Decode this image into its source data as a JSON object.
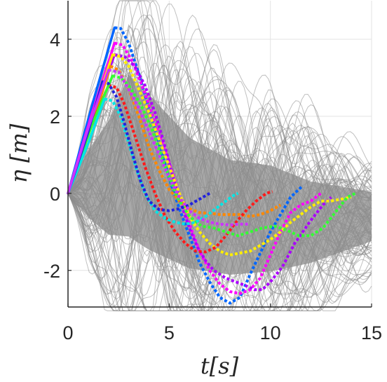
{
  "chart_data": {
    "type": "line",
    "xlabel": "t[s]",
    "ylabel": "η [m]",
    "xlim": [
      0,
      15
    ],
    "ylim": [
      -2.95,
      5.0
    ],
    "xticks": [
      0,
      5,
      10,
      15
    ],
    "yticks": [
      -2,
      0,
      2,
      4
    ],
    "xtick_labels": [
      "0",
      "5",
      "10",
      "15"
    ],
    "ytick_labels": [
      "-2",
      "0",
      "2",
      "4"
    ],
    "grid": true,
    "background": {
      "color": "#8c8c8c",
      "description_free": true,
      "trace_count": 110,
      "envelope_upper": [
        [
          0,
          0
        ],
        [
          1,
          1.6
        ],
        [
          2,
          2.7
        ],
        [
          3,
          4.25
        ],
        [
          4,
          3.7
        ],
        [
          6,
          2.4
        ],
        [
          8,
          1.7
        ],
        [
          10,
          1.5
        ],
        [
          12,
          0.9
        ],
        [
          15,
          0.4
        ]
      ],
      "envelope_lower": [
        [
          0,
          0
        ],
        [
          1,
          -1.1
        ],
        [
          2,
          -1.9
        ],
        [
          3,
          -2.3
        ],
        [
          4,
          -2.6
        ],
        [
          6,
          -2.9
        ],
        [
          8,
          -2.95
        ],
        [
          10,
          -2.8
        ],
        [
          12,
          -2.4
        ],
        [
          15,
          -1.6
        ]
      ]
    },
    "series": [
      {
        "color": "#0066ff",
        "values": [
          [
            0,
            0
          ],
          [
            1.2,
            2.3
          ],
          [
            2.3,
            4.3
          ],
          [
            2.6,
            4.28
          ],
          [
            3.0,
            3.9
          ],
          [
            3.5,
            3.1
          ],
          [
            4.0,
            2.2
          ],
          [
            4.5,
            1.3
          ],
          [
            5.0,
            0.4
          ],
          [
            5.5,
            -0.4
          ],
          [
            6.0,
            -1.1
          ],
          [
            6.5,
            -1.8
          ],
          [
            7.0,
            -2.3
          ],
          [
            7.5,
            -2.7
          ],
          [
            8.0,
            -2.85
          ],
          [
            8.5,
            -2.7
          ],
          [
            9.0,
            -2.1
          ],
          [
            10.0,
            -1.0
          ],
          [
            11.0,
            -0.1
          ],
          [
            11.6,
            0.2
          ]
        ]
      },
      {
        "color": "#ff00ff",
        "values": [
          [
            0,
            0
          ],
          [
            1.2,
            2.1
          ],
          [
            2.3,
            3.9
          ],
          [
            2.7,
            3.85
          ],
          [
            3.2,
            3.4
          ],
          [
            3.8,
            2.6
          ],
          [
            4.4,
            1.7
          ],
          [
            5.0,
            0.8
          ],
          [
            5.5,
            0.0
          ],
          [
            6.0,
            -0.8
          ],
          [
            6.5,
            -1.5
          ],
          [
            7.0,
            -2.0
          ],
          [
            7.5,
            -2.35
          ],
          [
            8.0,
            -2.55
          ],
          [
            8.5,
            -2.6
          ],
          [
            9.0,
            -2.5
          ],
          [
            9.5,
            -2.2
          ],
          [
            10.0,
            -1.6
          ],
          [
            10.5,
            -1.0
          ],
          [
            11.0,
            -0.5
          ],
          [
            11.5,
            -0.3
          ],
          [
            12.0,
            -0.2
          ],
          [
            12.5,
            0.0
          ]
        ]
      },
      {
        "color": "#aa00ff",
        "values": [
          [
            0,
            0
          ],
          [
            1.2,
            2.0
          ],
          [
            2.3,
            3.6
          ],
          [
            2.8,
            3.55
          ],
          [
            3.3,
            3.3
          ],
          [
            3.8,
            2.8
          ],
          [
            4.3,
            2.1
          ],
          [
            4.8,
            1.2
          ],
          [
            5.2,
            0.4
          ],
          [
            5.6,
            -0.3
          ],
          [
            6.0,
            -0.9
          ],
          [
            6.4,
            -1.4
          ],
          [
            6.8,
            -1.75
          ],
          [
            7.2,
            -2.0
          ],
          [
            7.8,
            -2.2
          ],
          [
            8.3,
            -2.3
          ],
          [
            8.8,
            -2.4
          ],
          [
            9.2,
            -2.5
          ],
          [
            9.6,
            -2.5
          ],
          [
            10.0,
            -2.3
          ],
          [
            10.6,
            -1.9
          ],
          [
            11.2,
            -1.3
          ],
          [
            12.0,
            -0.7
          ],
          [
            12.6,
            -0.3
          ],
          [
            13.0,
            -0.1
          ]
        ]
      },
      {
        "color": "#ffee00",
        "values": [
          [
            0,
            0
          ],
          [
            1.2,
            2.0
          ],
          [
            2.2,
            3.6
          ],
          [
            2.6,
            3.55
          ],
          [
            3.0,
            3.3
          ],
          [
            3.5,
            2.7
          ],
          [
            4.0,
            2.1
          ],
          [
            4.5,
            1.4
          ],
          [
            5.0,
            0.7
          ],
          [
            5.5,
            0.0
          ],
          [
            6.0,
            -0.6
          ],
          [
            6.5,
            -1.0
          ],
          [
            7.0,
            -1.3
          ],
          [
            7.5,
            -1.5
          ],
          [
            8.0,
            -1.6
          ],
          [
            8.5,
            -1.55
          ],
          [
            9.0,
            -1.5
          ],
          [
            9.5,
            -1.35
          ],
          [
            10.0,
            -1.2
          ],
          [
            10.5,
            -1.0
          ],
          [
            11.0,
            -0.75
          ],
          [
            11.5,
            -0.55
          ],
          [
            12.0,
            -0.35
          ],
          [
            12.5,
            -0.2
          ],
          [
            13.0,
            -0.2
          ],
          [
            13.5,
            -0.15
          ],
          [
            14.0,
            -0.1
          ]
        ]
      },
      {
        "color": "#ff8800",
        "values": [
          [
            0,
            0
          ],
          [
            1.2,
            1.8
          ],
          [
            2.1,
            3.3
          ],
          [
            2.5,
            3.2
          ],
          [
            3.0,
            2.7
          ],
          [
            3.5,
            2.0
          ],
          [
            4.0,
            1.2
          ],
          [
            4.5,
            0.6
          ],
          [
            5.0,
            0.1
          ],
          [
            5.5,
            -0.2
          ],
          [
            6.0,
            -0.4
          ],
          [
            6.5,
            -0.5
          ],
          [
            7.0,
            -0.52
          ],
          [
            7.5,
            -0.55
          ],
          [
            8.0,
            -0.55
          ],
          [
            8.5,
            -0.55
          ],
          [
            9.0,
            -0.6
          ],
          [
            9.5,
            -0.55
          ],
          [
            10.0,
            -0.45
          ],
          [
            10.5,
            -0.3
          ]
        ]
      },
      {
        "color": "#ff1a1a",
        "values": [
          [
            0,
            0
          ],
          [
            1.0,
            1.6
          ],
          [
            2.0,
            2.8
          ],
          [
            2.4,
            2.75
          ],
          [
            2.8,
            2.3
          ],
          [
            3.3,
            1.5
          ],
          [
            3.8,
            0.7
          ],
          [
            4.3,
            0.0
          ],
          [
            4.8,
            -0.6
          ],
          [
            5.3,
            -1.0
          ],
          [
            5.8,
            -1.3
          ],
          [
            6.3,
            -1.5
          ],
          [
            6.8,
            -1.52
          ],
          [
            7.3,
            -1.4
          ],
          [
            7.8,
            -1.1
          ],
          [
            8.3,
            -0.75
          ],
          [
            8.8,
            -0.45
          ],
          [
            9.3,
            -0.2
          ],
          [
            9.8,
            0.0
          ],
          [
            10.1,
            0.05
          ]
        ]
      },
      {
        "color": "#33ff33",
        "values": [
          [
            0,
            0
          ],
          [
            1.2,
            1.8
          ],
          [
            2.2,
            3.05
          ],
          [
            2.6,
            3.0
          ],
          [
            3.0,
            2.8
          ],
          [
            3.6,
            2.3
          ],
          [
            4.2,
            1.6
          ],
          [
            4.8,
            0.7
          ],
          [
            5.4,
            -0.1
          ],
          [
            6.0,
            -0.6
          ],
          [
            6.6,
            -0.85
          ],
          [
            7.2,
            -0.9
          ],
          [
            7.8,
            -1.0
          ],
          [
            8.4,
            -1.1
          ],
          [
            9.0,
            -1.0
          ],
          [
            9.6,
            -0.9
          ],
          [
            10.2,
            -0.85
          ],
          [
            10.8,
            -0.95
          ],
          [
            11.4,
            -1.1
          ],
          [
            12.0,
            -1.1
          ],
          [
            12.6,
            -0.9
          ],
          [
            13.2,
            -0.5
          ],
          [
            13.8,
            -0.1
          ],
          [
            14.2,
            0.0
          ]
        ]
      },
      {
        "color": "#00e6e6",
        "values": [
          [
            0,
            0
          ],
          [
            1.0,
            1.3
          ],
          [
            1.8,
            2.45
          ],
          [
            2.2,
            2.4
          ],
          [
            2.6,
            2.0
          ],
          [
            3.0,
            1.3
          ],
          [
            3.4,
            0.6
          ],
          [
            3.8,
            0.0
          ],
          [
            4.3,
            -0.45
          ],
          [
            4.8,
            -0.65
          ],
          [
            5.3,
            -0.75
          ],
          [
            5.8,
            -0.8
          ],
          [
            6.3,
            -0.75
          ],
          [
            6.8,
            -0.6
          ],
          [
            7.3,
            -0.4
          ],
          [
            7.8,
            -0.2
          ],
          [
            8.2,
            -0.05
          ],
          [
            8.4,
            0.0
          ]
        ]
      },
      {
        "color": "#2222dd",
        "values": [
          [
            0,
            0
          ],
          [
            1.0,
            1.6
          ],
          [
            1.7,
            2.9
          ],
          [
            2.0,
            2.85
          ],
          [
            2.4,
            2.5
          ],
          [
            2.8,
            1.8
          ],
          [
            3.2,
            1.0
          ],
          [
            3.6,
            0.3
          ],
          [
            4.0,
            -0.2
          ],
          [
            4.5,
            -0.42
          ],
          [
            5.0,
            -0.45
          ],
          [
            5.5,
            -0.4
          ],
          [
            6.0,
            -0.3
          ],
          [
            6.5,
            -0.15
          ],
          [
            7.0,
            0.0
          ]
        ]
      },
      {
        "color": "#cc33ff",
        "values": [
          [
            0,
            0
          ],
          [
            1.0,
            1.7
          ],
          [
            2.0,
            3.2
          ],
          [
            2.5,
            3.15
          ],
          [
            3.0,
            2.7
          ],
          [
            3.5,
            2.2
          ],
          [
            4.0,
            1.6
          ],
          [
            4.5,
            1.0
          ],
          [
            5.0,
            0.4
          ],
          [
            5.5,
            -0.1
          ],
          [
            6.0,
            -0.45
          ],
          [
            6.5,
            -0.65
          ],
          [
            7.0,
            -0.75
          ],
          [
            7.5,
            -0.8
          ],
          [
            8.0,
            -0.82
          ],
          [
            8.5,
            -0.8
          ],
          [
            9.0,
            -0.8
          ]
        ]
      }
    ]
  }
}
